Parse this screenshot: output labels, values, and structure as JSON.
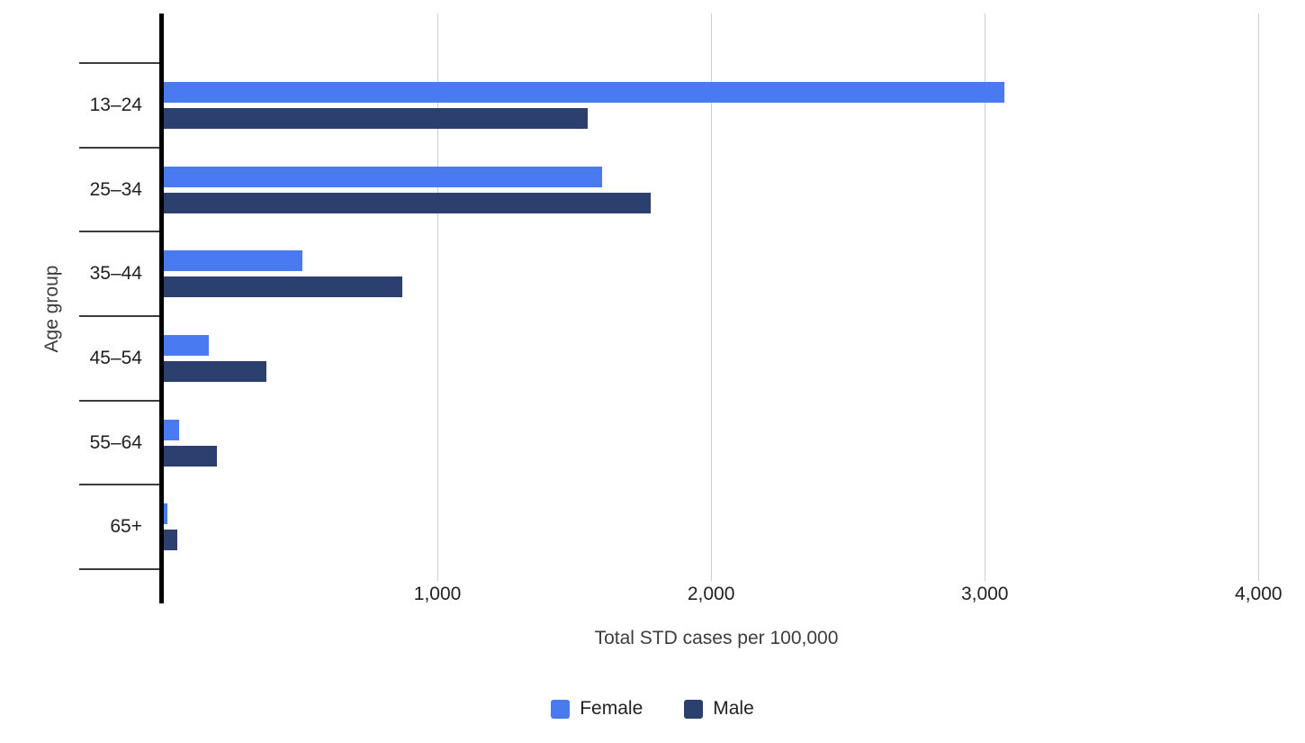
{
  "chart_data": {
    "type": "bar",
    "orientation": "horizontal",
    "xlabel": "Total STD cases per 100,000",
    "ylabel": "Age group",
    "categories": [
      "13–24",
      "25–34",
      "35–44",
      "45–54",
      "55–64",
      "65+"
    ],
    "series": [
      {
        "name": "Female",
        "color": "#4a7af0",
        "values": [
          3070,
          1600,
          505,
          165,
          55,
          13
        ]
      },
      {
        "name": "Male",
        "color": "#2b406e",
        "values": [
          1550,
          1780,
          870,
          375,
          195,
          48
        ]
      }
    ],
    "xlim": [
      0,
      4170
    ],
    "xticks": [
      1000,
      2000,
      3000,
      4000
    ],
    "xtick_labels": [
      "1,000",
      "2,000",
      "3,000",
      "4,000"
    ],
    "grid": true,
    "legend_position": "bottom",
    "legend_labels": {
      "female": "Female",
      "male": "Male"
    }
  }
}
